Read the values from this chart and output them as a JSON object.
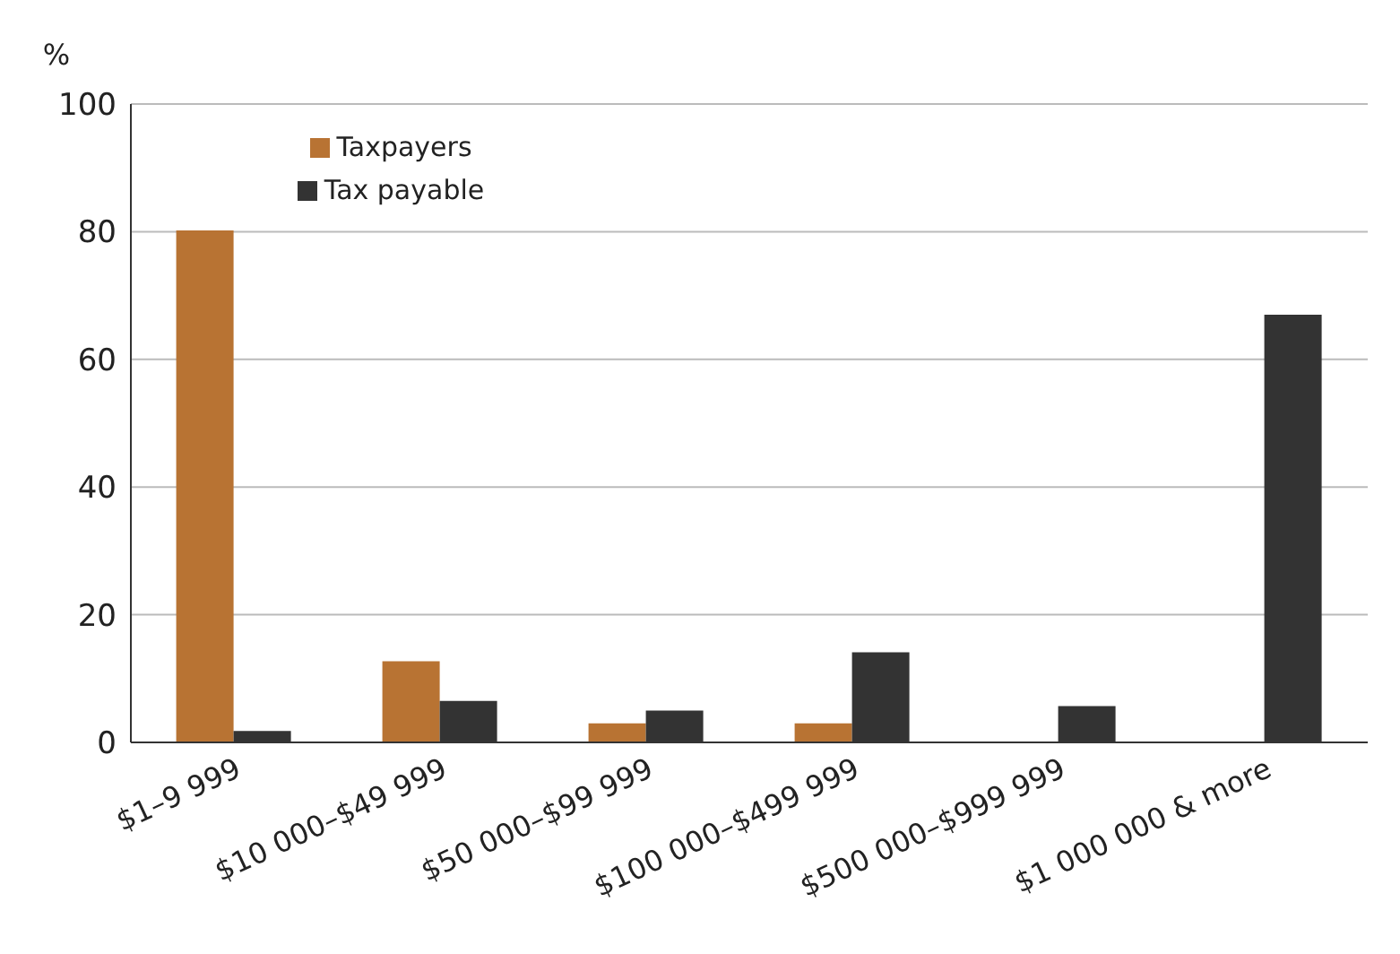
{
  "chart_data": {
    "type": "bar",
    "ylabel": "%",
    "categories": [
      "$1–9 999",
      "$10 000–$49 999",
      "$50 000–$99 999",
      "$100 000–$499 999",
      "$500 000–$999 999",
      "$1 000 000 & more"
    ],
    "series": [
      {
        "name": "Taxpayers",
        "color": "#b87333",
        "values": [
          80.2,
          12.7,
          3.0,
          3.0,
          0,
          0
        ]
      },
      {
        "name": "Tax payable",
        "color": "#333333",
        "values": [
          1.8,
          6.5,
          5.0,
          14.1,
          5.7,
          67.0
        ]
      }
    ],
    "ylim": [
      0,
      100
    ],
    "yticks": [
      0,
      20,
      40,
      60,
      80,
      100
    ],
    "grid": "y",
    "legend": "top left"
  }
}
